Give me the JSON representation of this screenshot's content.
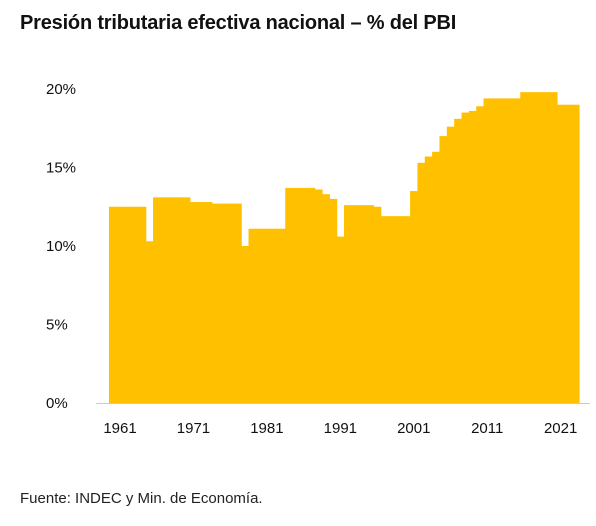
{
  "title": "Presión tributaria efectiva nacional – % del PBI",
  "source": "Fuente: INDEC y Min. de Economía.",
  "chart_data": {
    "type": "area",
    "title": "Presión tributaria efectiva nacional – % del PBI",
    "xlabel": "",
    "ylabel": "",
    "color": "#FFC000",
    "grid": false,
    "ylim": [
      0,
      20
    ],
    "xlim": [
      1960,
      2024
    ],
    "yticks": [
      0,
      5,
      10,
      15,
      20
    ],
    "ytick_labels": [
      "0%",
      "5%",
      "10%",
      "15%",
      "20%"
    ],
    "xticks": [
      1961,
      1971,
      1981,
      1991,
      2001,
      2011,
      2021
    ],
    "xtick_labels": [
      "1961",
      "1971",
      "1981",
      "1991",
      "2001",
      "2011",
      "2021"
    ],
    "series": [
      {
        "x": [
          1960,
          1961,
          1962,
          1963,
          1964,
          1965,
          1966,
          1967,
          1968,
          1969,
          1970,
          1971,
          1972,
          1973,
          1974,
          1975,
          1976,
          1977,
          1978,
          1979,
          1980,
          1981,
          1982,
          1983,
          1984,
          1985,
          1986,
          1987,
          1988,
          1989,
          1990,
          1991,
          1992,
          1993,
          1994,
          1995,
          1996,
          1997,
          1998,
          1999,
          2000,
          2001,
          2002,
          2003,
          2004,
          2005,
          2006,
          2007,
          2008,
          2009,
          2010,
          2011,
          2012,
          2013,
          2014,
          2015,
          2016,
          2017,
          2018,
          2019,
          2020,
          2021,
          2022,
          2023
        ],
        "values": [
          12.5,
          12.5,
          12.5,
          12.5,
          12.5,
          10.3,
          13.1,
          13.1,
          13.1,
          13.1,
          13.1,
          12.8,
          12.8,
          12.8,
          12.7,
          12.7,
          12.7,
          12.7,
          10.0,
          11.1,
          11.1,
          11.1,
          11.1,
          11.1,
          13.7,
          13.7,
          13.7,
          13.7,
          13.6,
          13.3,
          13.0,
          10.6,
          12.6,
          12.6,
          12.6,
          12.6,
          12.5,
          11.9,
          11.9,
          11.9,
          11.9,
          13.5,
          15.3,
          15.7,
          16.0,
          17.0,
          17.6,
          18.1,
          18.5,
          18.6,
          18.9,
          19.4,
          19.4,
          19.4,
          19.4,
          19.4,
          19.8,
          19.8,
          19.8,
          19.8,
          19.8,
          19.0,
          19.0,
          19.0
        ]
      }
    ]
  }
}
